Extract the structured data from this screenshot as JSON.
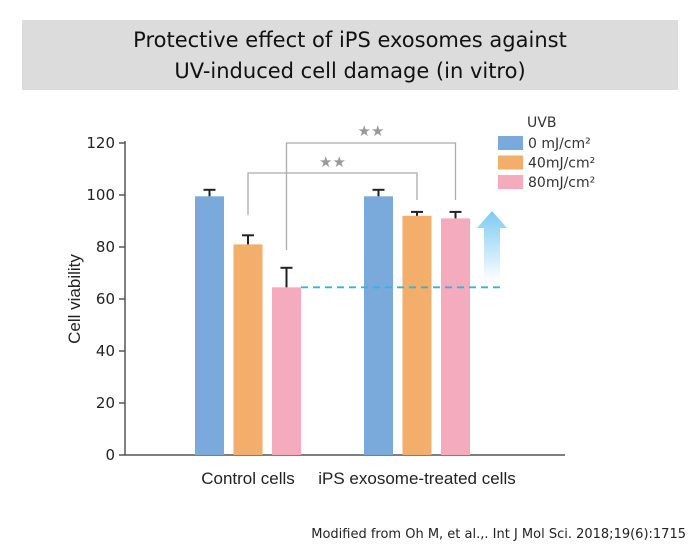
{
  "chart_data": {
    "type": "bar",
    "title_lines": [
      "Protective effect of iPS exosomes against",
      "UV-induced cell damage (in vitro)"
    ],
    "ylabel": "Cell viability",
    "xlabel": "",
    "ylim": [
      0,
      120
    ],
    "yticks": [
      0,
      20,
      40,
      60,
      80,
      100,
      120
    ],
    "categories": [
      "Control cells",
      "iPS exosome-treated cells"
    ],
    "legend_title": "UVB",
    "legend_placement": "top-right",
    "series": [
      {
        "name": "0  mJ/cm²",
        "color": "#7aaadb",
        "values": [
          99.5,
          99.5
        ],
        "error_top": [
          102,
          102
        ]
      },
      {
        "name": "40mJ/cm²",
        "color": "#f2ae6a",
        "values": [
          81,
          92
        ],
        "error_top": [
          84.5,
          93.5
        ]
      },
      {
        "name": "80mJ/cm²",
        "color": "#f4abbe",
        "values": [
          64.5,
          91
        ],
        "error_top": [
          72,
          93.5
        ]
      }
    ],
    "significance": [
      {
        "label": "★★",
        "from": "Control cells 40mJ/cm²",
        "to": "iPS exosome-treated cells 40mJ/cm²"
      },
      {
        "label": "★★",
        "from": "Control cells 80mJ/cm²",
        "to": "iPS exosome-treated cells 80mJ/cm²"
      }
    ],
    "reference_line": {
      "y": 64.5,
      "color": "#29b6e8",
      "style": "dashed"
    },
    "arrow": {
      "direction": "up",
      "color": "#7ccaf2"
    }
  },
  "credit": "Modified from Oh M, et al.,. Int J Mol Sci. 2018;19(6):1715"
}
